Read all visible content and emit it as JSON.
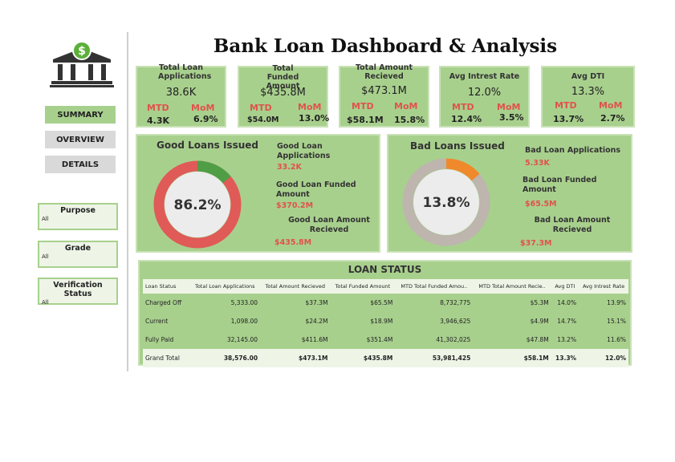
{
  "header": {
    "title": "Bank Loan Dashboard & Analysis"
  },
  "sidebar": {
    "logo_icon": "bank-dollar-icon",
    "nav": [
      {
        "label": "SUMMARY",
        "active": true
      },
      {
        "label": "OVERVIEW",
        "active": false
      },
      {
        "label": "DETAILS",
        "active": false
      }
    ],
    "filters": [
      {
        "label": "Purpose",
        "value": "All"
      },
      {
        "label": "Grade",
        "value": "All"
      },
      {
        "label": "Verification Status",
        "value": "All"
      }
    ]
  },
  "kpis": [
    {
      "label": "Total Loan Applications",
      "value": "38.6K",
      "mtd_label": "MTD",
      "mtd": "4.3K",
      "mom_label": "MoM",
      "mom": "6.9%"
    },
    {
      "label": "Total Funded Amount",
      "value": "$435.8M",
      "mtd_label": "MTD",
      "mtd": "$54.0M",
      "mom_label": "MoM",
      "mom": "13.0%"
    },
    {
      "label": "Total Amount Recieved",
      "value": "$473.1M",
      "mtd_label": "MTD",
      "mtd": "$58.1M",
      "mom_label": "MoM",
      "mom": "15.8%"
    },
    {
      "label": "Avg Intrest Rate",
      "value": "12.0%",
      "mtd_label": "MTD",
      "mtd": "12.4%",
      "mom_label": "MoM",
      "mom": "3.5%"
    },
    {
      "label": "Avg DTI",
      "value": "13.3%",
      "mtd_label": "MTD",
      "mtd": "13.7%",
      "mom_label": "MoM",
      "mom": "2.7%"
    }
  ],
  "good_loans": {
    "title": "Good Loans Issued",
    "percent_label": "86.2%",
    "percent": 0.862,
    "ring_color": "#e05a57",
    "highlight_color": "#4f9e45",
    "applications_label": "Good Loan Applications",
    "applications": "33.2K",
    "funded_label": "Good Loan Funded Amount",
    "funded": "$370.2M",
    "received_label": "Good Loan Amount Recieved",
    "received": "$435.8M"
  },
  "bad_loans": {
    "title": "Bad Loans Issued",
    "percent_label": "13.8%",
    "percent": 0.138,
    "ring_color": "#bdb5ae",
    "highlight_color": "#f0892b",
    "applications_label": "Bad Loan Applications",
    "applications": "5.33K",
    "funded_label": "Bad Loan Funded Amount",
    "funded": "$65.5M",
    "received_label": "Bad Loan Amount Recieved",
    "received": "$37.3M"
  },
  "loan_status": {
    "title": "LOAN STATUS",
    "columns": [
      "Loan Status",
      "Total Loan Applications",
      "Total Amount Recieved",
      "Total Funded Amount",
      "MTD Total Funded Amou..",
      "MTD Total Amount Recie..",
      "Avg DTI",
      "Avg Intrest Rate"
    ],
    "rows": [
      [
        "Charged Off",
        "5,333.00",
        "$37.3M",
        "$65.5M",
        "8,732,775",
        "$5.3M",
        "14.0%",
        "13.9%"
      ],
      [
        "Current",
        "1,098.00",
        "$24.2M",
        "$18.9M",
        "3,946,625",
        "$4.9M",
        "14.7%",
        "15.1%"
      ],
      [
        "Fully Paid",
        "32,145.00",
        "$411.6M",
        "$351.4M",
        "41,302,025",
        "$47.8M",
        "13.2%",
        "11.6%"
      ]
    ],
    "total": [
      "Grand Total",
      "38,576.00",
      "$473.1M",
      "$435.8M",
      "53,981,425",
      "$58.1M",
      "13.3%",
      "12.0%"
    ]
  }
}
